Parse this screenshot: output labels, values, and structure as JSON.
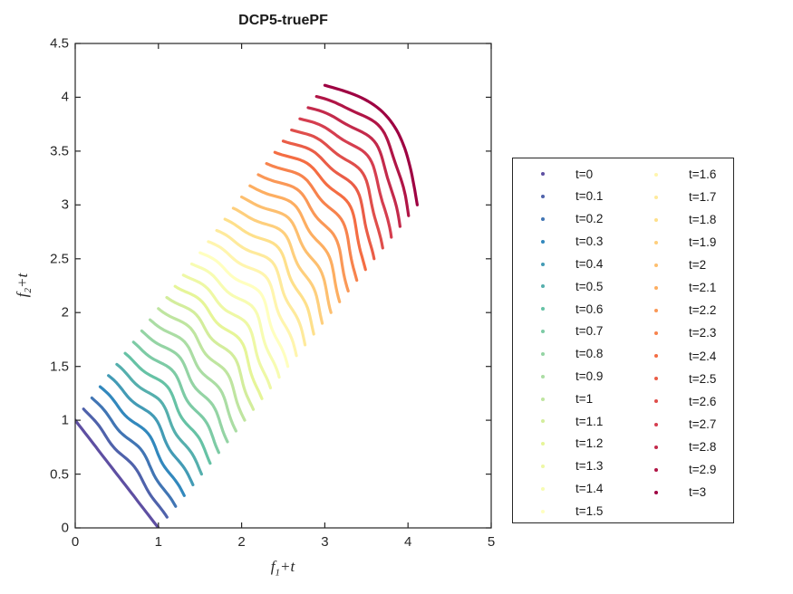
{
  "figure": {
    "title": "DCP5-truePF",
    "background": "#ffffff"
  },
  "axes": {
    "xlabel": {
      "base": "f",
      "sub": "1",
      "rest": "+t"
    },
    "ylabel": {
      "base": "f",
      "sub": "2",
      "rest": "+t"
    },
    "xlim": [
      0,
      5
    ],
    "ylim": [
      0,
      4.5
    ],
    "xticks": {
      "values": [
        0,
        1,
        2,
        3,
        4,
        5
      ],
      "labels": [
        "0",
        "1",
        "2",
        "3",
        "4",
        "5"
      ]
    },
    "yticks": {
      "values": [
        0,
        0.5,
        1,
        1.5,
        2,
        2.5,
        3,
        3.5,
        4,
        4.5
      ],
      "labels": [
        "0",
        "0.5",
        "1",
        "1.5",
        "2",
        "2.5",
        "3",
        "3.5",
        "4",
        "4.5"
      ]
    },
    "grid": false,
    "box": true,
    "tick_direction": "in",
    "axis_color": "#262626"
  },
  "legend": {
    "position": "right-outside",
    "columns": 2,
    "rows_per_column": [
      16,
      15
    ],
    "border_color": "#262626"
  },
  "chart_data": {
    "type": "scatter",
    "title": "DCP5-truePF",
    "xlabel": "f1+t",
    "ylabel": "f2+t",
    "xlim": [
      0,
      5
    ],
    "ylim": [
      0,
      4.5
    ],
    "colormap": "Spectral reversed (dark blue at t=0 to dark red at t=3)",
    "point_model": "Each time step t plots a dense point set P(s)=a+s*(b-a)+n*(bulge*sin(pi*s)+wiggle*sin(4*pi*s+phase)*sin(pi*s)), s in [0,1], n=(0.7071,0.7071); fronts morph from the straight line f1+f2=1 at t=0, through wiggly knee fronts, to a quarter-circle arc of radius 1.11 centered at (3,3) at t=3",
    "series": [
      {
        "label": "t=0",
        "t": 0,
        "color": "#5E4FA2",
        "a": [
          0,
          1
        ],
        "b": [
          1,
          0
        ],
        "bulge": 0,
        "wiggle": 0,
        "phase": 0
      },
      {
        "label": "t=0.1",
        "t": 0.1,
        "color": "#4F62AB",
        "a": [
          0.1,
          1.104
        ],
        "b": [
          1.104,
          0.1
        ],
        "bulge": 0.03,
        "wiggle": 0.025,
        "phase": 0.5
      },
      {
        "label": "t=0.2",
        "t": 0.2,
        "color": "#4175B4",
        "a": [
          0.2,
          1.207
        ],
        "b": [
          1.207,
          0.2
        ],
        "bulge": 0.049,
        "wiggle": 0.031,
        "phase": 1.0
      },
      {
        "label": "t=0.3",
        "t": 0.3,
        "color": "#3288BD",
        "a": [
          0.3,
          1.311
        ],
        "b": [
          1.311,
          0.3
        ],
        "bulge": 0.065,
        "wiggle": 0.035,
        "phase": 1.5
      },
      {
        "label": "t=0.4",
        "t": 0.4,
        "color": "#439BB5",
        "a": [
          0.4,
          1.415
        ],
        "b": [
          1.415,
          0.4
        ],
        "bulge": 0.079,
        "wiggle": 0.038,
        "phase": 2.0
      },
      {
        "label": "t=0.5",
        "t": 0.5,
        "color": "#55AFAD",
        "a": [
          0.5,
          1.519
        ],
        "b": [
          1.519,
          0.5
        ],
        "bulge": 0.093,
        "wiggle": 0.041,
        "phase": 2.5
      },
      {
        "label": "t=0.6",
        "t": 0.6,
        "color": "#66C2A5",
        "a": [
          0.6,
          1.622
        ],
        "b": [
          1.622,
          0.6
        ],
        "bulge": 0.105,
        "wiggle": 0.043,
        "phase": 3.0
      },
      {
        "label": "t=0.7",
        "t": 0.7,
        "color": "#7DCBA5",
        "a": [
          0.7,
          1.726
        ],
        "b": [
          1.726,
          0.7
        ],
        "bulge": 0.117,
        "wiggle": 0.044,
        "phase": 3.5
      },
      {
        "label": "t=0.8",
        "t": 0.8,
        "color": "#94D4A4",
        "a": [
          0.8,
          1.83
        ],
        "b": [
          1.83,
          0.8
        ],
        "bulge": 0.129,
        "wiggle": 0.046,
        "phase": 4.0
      },
      {
        "label": "t=0.9",
        "t": 0.9,
        "color": "#ABDDA4",
        "a": [
          0.9,
          1.933
        ],
        "b": [
          1.933,
          0.9
        ],
        "bulge": 0.14,
        "wiggle": 0.047,
        "phase": 4.5
      },
      {
        "label": "t=1",
        "t": 1,
        "color": "#BFE5A0",
        "a": [
          1,
          2.037
        ],
        "b": [
          2.037,
          1
        ],
        "bulge": 0.151,
        "wiggle": 0.048,
        "phase": 5.0
      },
      {
        "label": "t=1.1",
        "t": 1.1,
        "color": "#D3ED9C",
        "a": [
          1.1,
          2.141
        ],
        "b": [
          2.141,
          1.1
        ],
        "bulge": 0.161,
        "wiggle": 0.049,
        "phase": 5.5
      },
      {
        "label": "t=1.2",
        "t": 1.2,
        "color": "#E6F598",
        "a": [
          1.2,
          2.244
        ],
        "b": [
          2.244,
          1.2
        ],
        "bulge": 0.171,
        "wiggle": 0.049,
        "phase": 6.0
      },
      {
        "label": "t=1.3",
        "t": 1.3,
        "color": "#EEF8A5",
        "a": [
          1.3,
          2.348
        ],
        "b": [
          2.348,
          1.3
        ],
        "bulge": 0.181,
        "wiggle": 0.05,
        "phase": 0.22
      },
      {
        "label": "t=1.4",
        "t": 1.4,
        "color": "#F7FCB2",
        "a": [
          1.4,
          2.452
        ],
        "b": [
          2.452,
          1.4
        ],
        "bulge": 0.191,
        "wiggle": 0.05,
        "phase": 0.72
      },
      {
        "label": "t=1.5",
        "t": 1.5,
        "color": "#FFFFBF",
        "a": [
          1.5,
          2.556
        ],
        "b": [
          2.556,
          1.5
        ],
        "bulge": 0.2,
        "wiggle": 0.05,
        "phase": 1.22
      },
      {
        "label": "t=1.6",
        "t": 1.6,
        "color": "#FFF5AE",
        "a": [
          1.6,
          2.659
        ],
        "b": [
          2.659,
          1.6
        ],
        "bulge": 0.209,
        "wiggle": 0.05,
        "phase": 1.72
      },
      {
        "label": "t=1.7",
        "t": 1.7,
        "color": "#FEEA9C",
        "a": [
          1.7,
          2.763
        ],
        "b": [
          2.763,
          1.7
        ],
        "bulge": 0.218,
        "wiggle": 0.05,
        "phase": 2.22
      },
      {
        "label": "t=1.8",
        "t": 1.8,
        "color": "#FEE08B",
        "a": [
          1.8,
          2.867
        ],
        "b": [
          2.867,
          1.8
        ],
        "bulge": 0.227,
        "wiggle": 0.049,
        "phase": 2.72
      },
      {
        "label": "t=1.9",
        "t": 1.9,
        "color": "#FECF7D",
        "a": [
          1.9,
          2.97
        ],
        "b": [
          2.97,
          1.9
        ],
        "bulge": 0.236,
        "wiggle": 0.049,
        "phase": 3.22
      },
      {
        "label": "t=2",
        "t": 2,
        "color": "#FDBF6F",
        "a": [
          2,
          3.074
        ],
        "b": [
          3.074,
          2
        ],
        "bulge": 0.245,
        "wiggle": 0.048,
        "phase": 3.72
      },
      {
        "label": "t=2.1",
        "t": 2.1,
        "color": "#FDAE61",
        "a": [
          2.1,
          3.178
        ],
        "b": [
          3.178,
          2.1
        ],
        "bulge": 0.253,
        "wiggle": 0.047,
        "phase": 4.22
      },
      {
        "label": "t=2.2",
        "t": 2.2,
        "color": "#FA9857",
        "a": [
          2.2,
          3.281
        ],
        "b": [
          3.281,
          2.2
        ],
        "bulge": 0.262,
        "wiggle": 0.046,
        "phase": 4.72
      },
      {
        "label": "t=2.3",
        "t": 2.3,
        "color": "#F7834D",
        "a": [
          2.3,
          3.385
        ],
        "b": [
          3.385,
          2.3
        ],
        "bulge": 0.27,
        "wiggle": 0.044,
        "phase": 5.22
      },
      {
        "label": "t=2.4",
        "t": 2.4,
        "color": "#F46D43",
        "a": [
          2.4,
          3.489
        ],
        "b": [
          3.489,
          2.4
        ],
        "bulge": 0.278,
        "wiggle": 0.043,
        "phase": 5.72
      },
      {
        "label": "t=2.5",
        "t": 2.5,
        "color": "#EA5D47",
        "a": [
          2.5,
          3.593
        ],
        "b": [
          3.593,
          2.5
        ],
        "bulge": 0.286,
        "wiggle": 0.041,
        "phase": 6.22
      },
      {
        "label": "t=2.6",
        "t": 2.6,
        "color": "#DF4E4B",
        "a": [
          2.6,
          3.696
        ],
        "b": [
          3.696,
          2.6
        ],
        "bulge": 0.294,
        "wiggle": 0.038,
        "phase": 0.43
      },
      {
        "label": "t=2.7",
        "t": 2.7,
        "color": "#D53E4F",
        "a": [
          2.7,
          3.8
        ],
        "b": [
          3.8,
          2.7
        ],
        "bulge": 0.302,
        "wiggle": 0.035,
        "phase": 0.93
      },
      {
        "label": "t=2.8",
        "t": 2.8,
        "color": "#C32A4B",
        "a": [
          2.8,
          3.904
        ],
        "b": [
          3.904,
          2.8
        ],
        "bulge": 0.31,
        "wiggle": 0.031,
        "phase": 1.43
      },
      {
        "label": "t=2.9",
        "t": 2.9,
        "color": "#B01546",
        "a": [
          2.9,
          4.007
        ],
        "b": [
          4.007,
          2.9
        ],
        "bulge": 0.317,
        "wiggle": 0.025,
        "phase": 1.93
      },
      {
        "label": "t=3",
        "t": 3,
        "color": "#9E0142",
        "a": [
          3,
          4.111
        ],
        "b": [
          4.111,
          3
        ],
        "bulge": 0.325,
        "wiggle": 0,
        "phase": 0
      }
    ]
  }
}
